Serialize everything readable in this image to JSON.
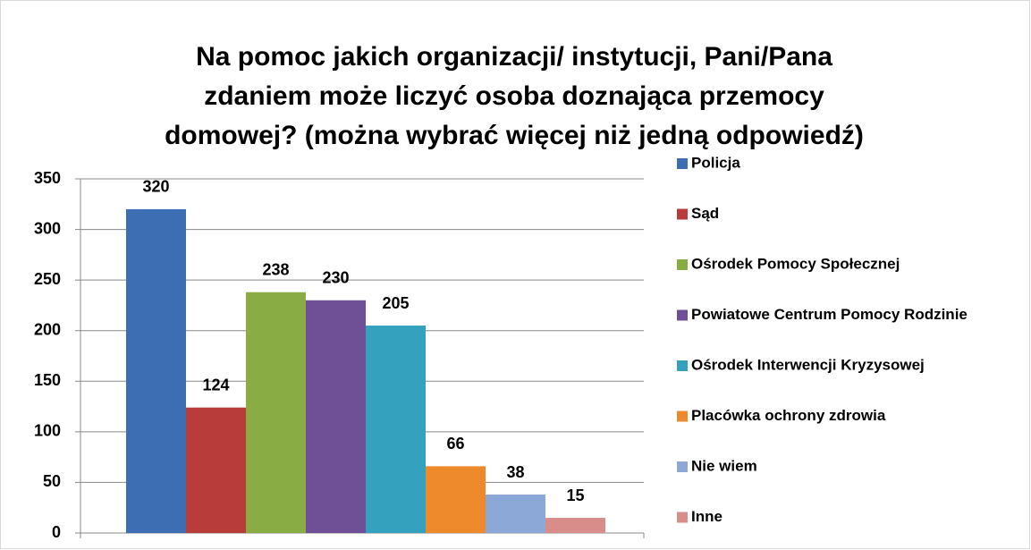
{
  "chart_data": {
    "type": "bar",
    "title": [
      "Na pomoc jakich organizacji/ instytucji, Pani/Pana",
      "zdaniem może liczyć osoba doznająca przemocy",
      "domowej? (można wybrać więcej niż jedną odpowiedź)"
    ],
    "series": [
      {
        "name": "Policja",
        "color": "#3d6db3",
        "values": [
          320
        ]
      },
      {
        "name": "Sąd",
        "color": "#b83d3a",
        "values": [
          124
        ]
      },
      {
        "name": "Ośrodek Pomocy Społecznej",
        "color": "#8aac45",
        "values": [
          238
        ]
      },
      {
        "name": "Powiatowe Centrum Pomocy Rodzinie",
        "color": "#6f5097",
        "values": [
          230
        ]
      },
      {
        "name": "Ośrodek Interwencji Kryzysowej",
        "color": "#34a1bf",
        "values": [
          205
        ]
      },
      {
        "name": "Placówka ochrony zdrowia",
        "color": "#ef8a2c",
        "values": [
          66
        ]
      },
      {
        "name": "Nie wiem",
        "color": "#8ba8d6",
        "values": [
          38
        ]
      },
      {
        "name": "Inne",
        "color": "#d98d8b",
        "values": [
          15
        ]
      }
    ],
    "ylim": [
      0,
      350
    ],
    "yticks": [
      0,
      50,
      100,
      150,
      200,
      250,
      300,
      350
    ],
    "grid": true,
    "legend": "right"
  }
}
